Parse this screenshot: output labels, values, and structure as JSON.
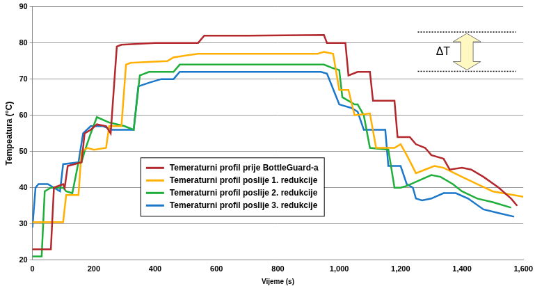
{
  "chart_data": {
    "type": "line",
    "x_label": "Vijeme (s)",
    "y_label": "Tempeatura (°C)",
    "xlim": [
      0,
      1600
    ],
    "xticks": [
      0,
      200,
      400,
      600,
      800,
      1000,
      1200,
      1400,
      1600
    ],
    "ylim": [
      20,
      90
    ],
    "yticks": [
      20,
      30,
      40,
      50,
      60,
      70,
      80,
      90
    ],
    "grid": "y",
    "legend": "center",
    "annotations": [
      {
        "text": "ΔT"
      }
    ],
    "series": [
      {
        "name": "Temeraturni profil prije BottleGuard-a",
        "color": "#b3282d",
        "x": [
          0,
          60,
          70,
          100,
          105,
          115,
          160,
          170,
          190,
          210,
          240,
          255,
          275,
          290,
          400,
          540,
          560,
          700,
          950,
          960,
          1020,
          1030,
          1060,
          1100,
          1110,
          1180,
          1190,
          1230,
          1250,
          1280,
          1300,
          1340,
          1360,
          1400,
          1430,
          1470,
          1520,
          1560,
          1580
        ],
        "values": [
          23,
          23,
          40,
          41,
          40,
          46,
          47,
          55,
          56,
          57.5,
          57,
          55,
          79,
          79.5,
          80,
          80,
          82,
          82,
          82.2,
          80,
          80,
          71,
          72,
          72,
          64,
          64,
          54,
          54,
          52,
          51,
          49,
          48,
          45,
          45.5,
          45,
          43,
          40,
          37,
          35
        ]
      },
      {
        "name": "Temeraturni profil poslije 1. redukcije",
        "color": "#ffb000",
        "x": [
          0,
          100,
          110,
          150,
          160,
          180,
          200,
          240,
          250,
          290,
          305,
          320,
          440,
          460,
          500,
          540,
          930,
          950,
          980,
          1000,
          1030,
          1050,
          1100,
          1120,
          1180,
          1200,
          1220,
          1250,
          1280,
          1310,
          1340,
          1400,
          1450,
          1500,
          1600
        ],
        "values": [
          30.5,
          30.5,
          38,
          38,
          50,
          51,
          50.5,
          51,
          57,
          57,
          74,
          74.5,
          75,
          76,
          76.5,
          77,
          77,
          77.5,
          77,
          67,
          67,
          60,
          60.5,
          51,
          51,
          52,
          49,
          44,
          45,
          46,
          45.5,
          43,
          41,
          39,
          37.5
        ]
      },
      {
        "name": "Temeraturni profil poslije 2. redukcije",
        "color": "#1fae3a",
        "x": [
          0,
          30,
          40,
          60,
          100,
          110,
          130,
          150,
          160,
          170,
          190,
          210,
          250,
          300,
          330,
          350,
          380,
          460,
          480,
          950,
          980,
          1000,
          1010,
          1050,
          1060,
          1080,
          1100,
          1160,
          1180,
          1200,
          1220,
          1260,
          1300,
          1330,
          1370,
          1400,
          1450,
          1500,
          1560
        ],
        "values": [
          21,
          21,
          39,
          40,
          40,
          39,
          38.5,
          47,
          47,
          50,
          55,
          59.5,
          58,
          57,
          56,
          71,
          72,
          72,
          74,
          74,
          73,
          72.5,
          65,
          63,
          63,
          60,
          51,
          50.5,
          40,
          40,
          40.5,
          42,
          43.5,
          43,
          41,
          39,
          37,
          36,
          34.5
        ]
      },
      {
        "name": "Temeraturni profil poslije 3. redukcije",
        "color": "#1a77c9",
        "x": [
          0,
          10,
          20,
          50,
          70,
          90,
          100,
          150,
          165,
          190,
          230,
          260,
          330,
          345,
          380,
          420,
          460,
          480,
          940,
          960,
          1000,
          1040,
          1060,
          1080,
          1150,
          1160,
          1200,
          1220,
          1240,
          1250,
          1270,
          1300,
          1340,
          1380,
          1420,
          1470,
          1520,
          1570
        ],
        "values": [
          29,
          40,
          41,
          41,
          40,
          39,
          46.5,
          47,
          55,
          57,
          57,
          56,
          56,
          68,
          69,
          70,
          70,
          72,
          72,
          71.5,
          63,
          62,
          61,
          56,
          56,
          46,
          46,
          41,
          40,
          37,
          36.5,
          37,
          38.5,
          38.5,
          37,
          34,
          33,
          32
        ]
      }
    ]
  }
}
